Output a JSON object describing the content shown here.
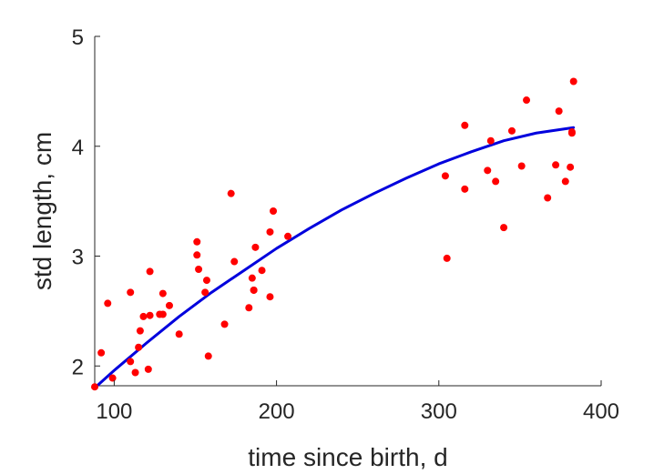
{
  "chart_data": {
    "type": "scatter",
    "xlabel": "time since birth, d",
    "ylabel": "std length, cm",
    "xlim": [
      88,
      400
    ],
    "ylim": [
      1.82,
      5
    ],
    "xticks": [
      100,
      200,
      300,
      400
    ],
    "yticks": [
      2,
      3,
      4,
      5
    ],
    "grid": false,
    "colors": {
      "points": "#ff0000",
      "curve": "#0000dd",
      "axes": "#262626"
    },
    "series": [
      {
        "type": "scatter",
        "x": [
          88,
          92,
          96,
          99,
          110,
          110,
          113,
          115,
          116,
          118,
          121,
          122,
          122,
          128,
          130,
          130,
          134,
          140,
          151,
          151,
          152,
          156,
          157,
          158,
          168,
          172,
          174,
          183,
          185,
          186,
          186,
          187,
          191,
          196,
          196,
          198,
          207,
          304,
          305,
          316,
          316,
          330,
          332,
          335,
          340,
          345,
          351,
          354,
          367,
          372,
          374,
          378,
          381,
          382,
          382,
          383
        ],
        "y": [
          1.81,
          2.12,
          2.57,
          1.89,
          2.67,
          2.04,
          1.94,
          2.17,
          2.32,
          2.45,
          1.97,
          2.46,
          2.86,
          2.47,
          2.66,
          2.47,
          2.55,
          2.29,
          3.13,
          3.01,
          2.88,
          2.67,
          2.78,
          2.09,
          2.38,
          3.57,
          2.95,
          2.53,
          2.8,
          2.69,
          2.69,
          3.08,
          2.87,
          3.22,
          2.63,
          3.41,
          3.18,
          3.73,
          2.98,
          4.19,
          3.61,
          3.78,
          4.05,
          3.68,
          3.26,
          4.14,
          3.82,
          4.42,
          3.53,
          3.83,
          4.32,
          3.68,
          3.81,
          4.13,
          4.12,
          4.59
        ]
      },
      {
        "type": "line",
        "x": [
          88,
          100,
          120,
          140,
          160,
          180,
          200,
          220,
          240,
          260,
          280,
          300,
          320,
          340,
          360,
          383
        ],
        "y": [
          1.8,
          1.96,
          2.21,
          2.45,
          2.67,
          2.87,
          3.07,
          3.25,
          3.42,
          3.57,
          3.71,
          3.84,
          3.95,
          4.05,
          4.12,
          4.17
        ]
      }
    ]
  }
}
